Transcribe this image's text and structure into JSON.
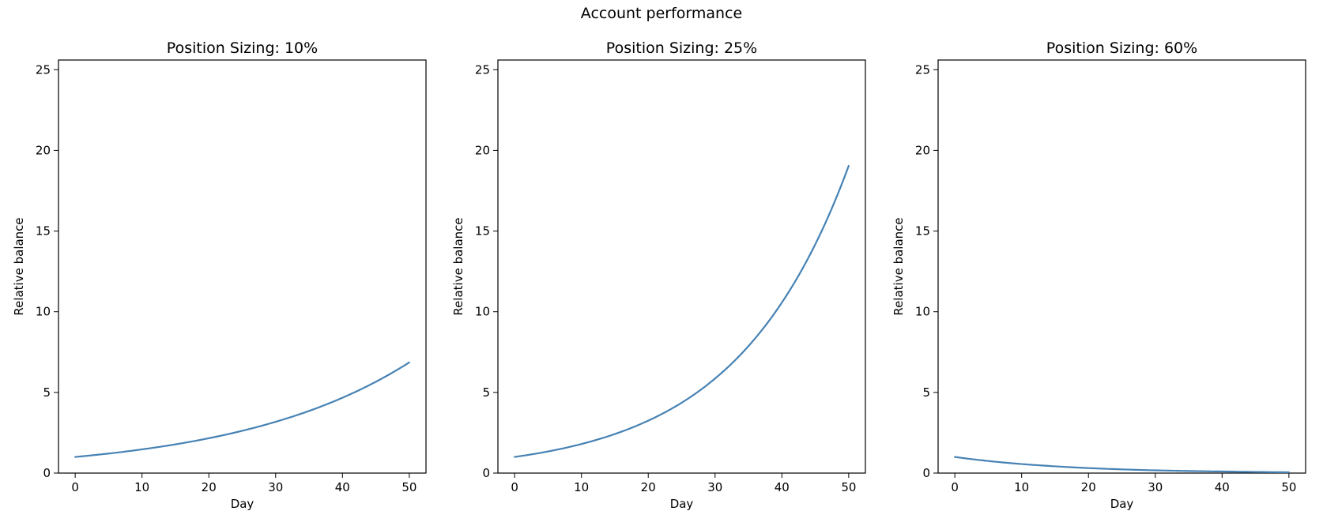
{
  "figure_title": "Account performance",
  "colors": {
    "line": "#4682b4"
  },
  "chart_data": [
    {
      "type": "line",
      "title": "Position Sizing: 10%",
      "xlabel": "Day",
      "ylabel": "Relative balance",
      "xlim": [
        -2.5,
        52.5
      ],
      "ylim": [
        0,
        25.6
      ],
      "xticks": [
        0,
        10,
        20,
        30,
        40,
        50
      ],
      "yticks": [
        0,
        5,
        10,
        15,
        20,
        25
      ],
      "grid": false,
      "series": [
        {
          "x": [
            0,
            5,
            10,
            15,
            20,
            25,
            30,
            35,
            40,
            45,
            50
          ],
          "y": [
            1.0,
            1.21,
            1.47,
            1.78,
            2.16,
            2.62,
            3.18,
            3.85,
            4.67,
            5.66,
            6.86
          ]
        }
      ]
    },
    {
      "type": "line",
      "title": "Position Sizing: 25%",
      "xlabel": "Day",
      "ylabel": "Relative balance",
      "xlim": [
        -2.5,
        52.5
      ],
      "ylim": [
        0,
        25.6
      ],
      "xticks": [
        0,
        10,
        20,
        30,
        40,
        50
      ],
      "yticks": [
        0,
        5,
        10,
        15,
        20,
        25
      ],
      "grid": false,
      "series": [
        {
          "x": [
            0,
            5,
            10,
            15,
            20,
            25,
            30,
            35,
            40,
            45,
            50
          ],
          "y": [
            1.0,
            1.34,
            1.8,
            2.42,
            3.25,
            4.36,
            5.86,
            7.87,
            10.57,
            14.18,
            19.04
          ]
        }
      ]
    },
    {
      "type": "line",
      "title": "Position Sizing: 60%",
      "xlabel": "Day",
      "ylabel": "Relative balance",
      "xlim": [
        -2.5,
        52.5
      ],
      "ylim": [
        0,
        25.6
      ],
      "xticks": [
        0,
        10,
        20,
        30,
        40,
        50
      ],
      "yticks": [
        0,
        5,
        10,
        15,
        20,
        25
      ],
      "grid": false,
      "series": [
        {
          "x": [
            0,
            5,
            10,
            15,
            20,
            25,
            30,
            35,
            40,
            45,
            50
          ],
          "y": [
            1.0,
            0.75,
            0.56,
            0.42,
            0.31,
            0.23,
            0.17,
            0.13,
            0.1,
            0.07,
            0.05
          ]
        }
      ]
    }
  ]
}
